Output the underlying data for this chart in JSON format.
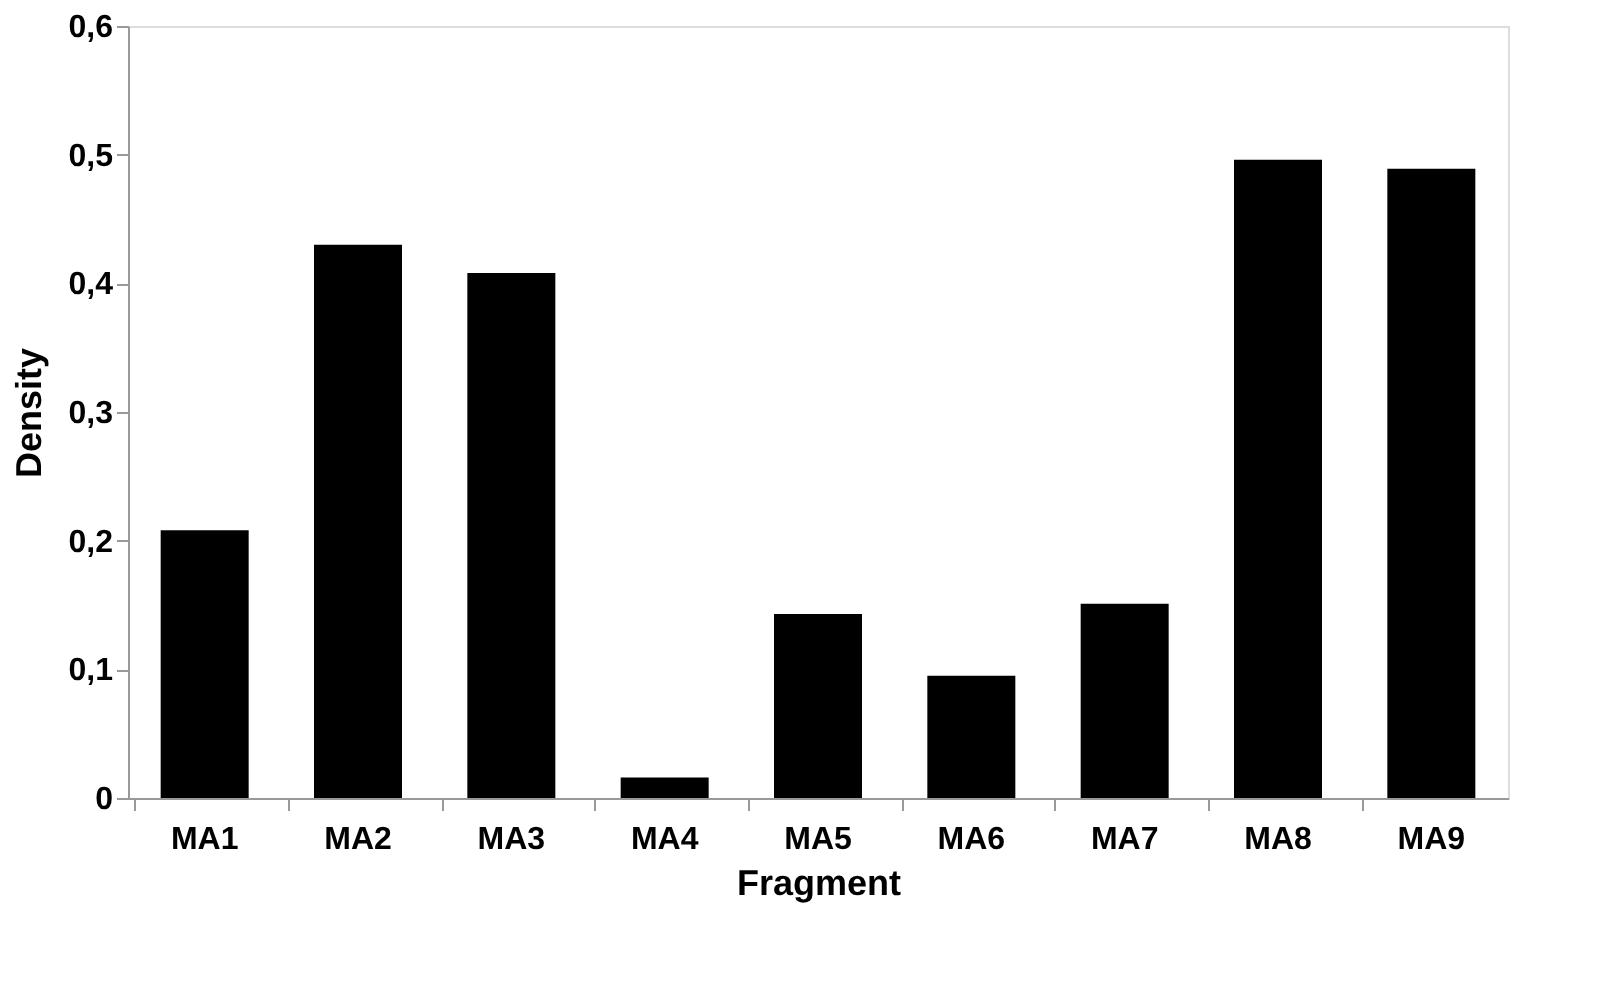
{
  "chart_data": {
    "type": "bar",
    "xlabel": "Fragment",
    "ylabel": "Density",
    "categories": [
      "MA1",
      "MA2",
      "MA3",
      "MA4",
      "MA5",
      "MA6",
      "MA7",
      "MA8",
      "MA9"
    ],
    "values": [
      0.208,
      0.43,
      0.408,
      0.016,
      0.143,
      0.095,
      0.151,
      0.496,
      0.489
    ],
    "color": "#000000",
    "ylim": [
      0,
      0.6
    ],
    "yticks": [
      0,
      {
        "value": 0.1,
        "label": "0,1"
      },
      {
        "value": 0.2,
        "label": "0,2"
      },
      {
        "value": 0.3,
        "label": "0,3"
      },
      {
        "value": 0.4,
        "label": "0,4"
      },
      {
        "value": 0.5,
        "label": "0,5"
      },
      {
        "value": 0.6,
        "label": "0,6"
      }
    ],
    "grid": false
  }
}
